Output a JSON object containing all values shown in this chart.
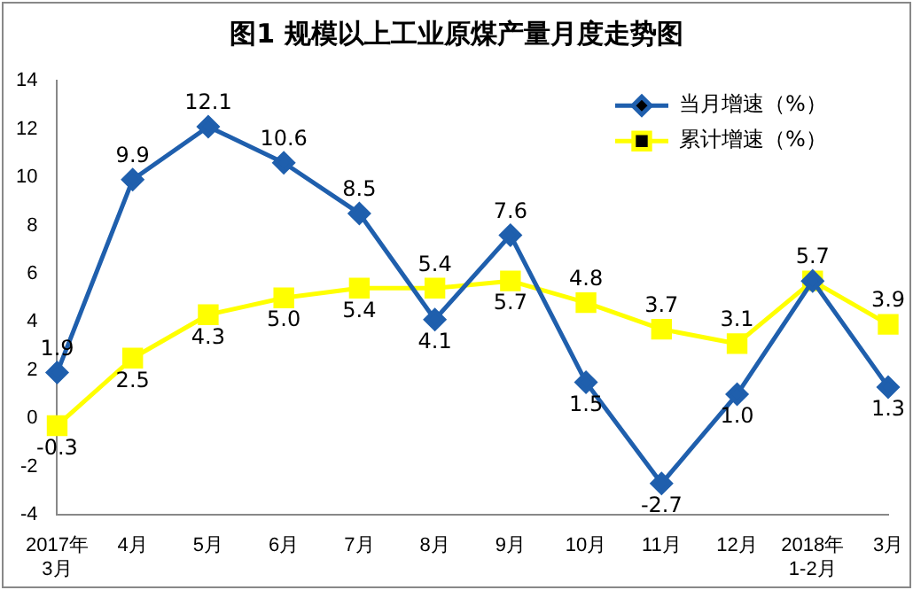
{
  "chart_data": {
    "type": "line",
    "title": "图1  规模以上工业原煤产量月度走势图",
    "categories": [
      "2017年3月",
      "4月",
      "5月",
      "6月",
      "7月",
      "8月",
      "9月",
      "10月",
      "11月",
      "12月",
      "2018年1-2月",
      "3月"
    ],
    "series": [
      {
        "name": "当月增速（%）",
        "color": "#1f5fad",
        "marker": "diamond",
        "values": [
          1.9,
          9.9,
          12.1,
          10.6,
          8.5,
          4.1,
          7.6,
          1.5,
          -2.7,
          1.0,
          5.7,
          1.3
        ],
        "value_labels": [
          "1.9",
          "9.9",
          "12.1",
          "10.6",
          "8.5",
          "4.1",
          "7.6",
          "1.5",
          "-2.7",
          "1.0",
          "5.7",
          "1.3"
        ]
      },
      {
        "name": "累计增速（%）",
        "color": "#ffff00",
        "marker": "square",
        "values": [
          -0.3,
          2.5,
          4.3,
          5.0,
          5.4,
          5.4,
          5.7,
          4.8,
          3.7,
          3.1,
          5.7,
          3.9
        ],
        "value_labels": [
          "-0.3",
          "2.5",
          "4.3",
          "5.0",
          "5.4",
          "5.4",
          "5.7",
          "4.8",
          "3.7",
          "3.1",
          null,
          "3.9"
        ]
      }
    ],
    "ylim": [
      -4,
      14
    ],
    "yticks": [
      -4,
      -2,
      0,
      2,
      4,
      6,
      8,
      10,
      12,
      14
    ],
    "grid": false,
    "legend": "top right",
    "line_style": "solid"
  }
}
